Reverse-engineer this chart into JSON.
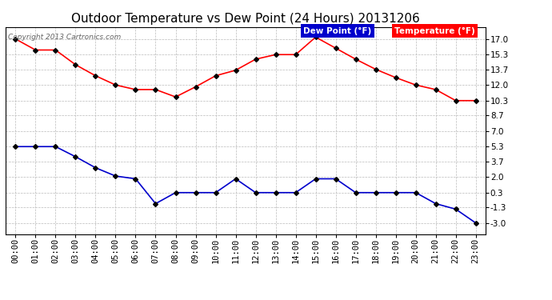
{
  "title": "Outdoor Temperature vs Dew Point (24 Hours) 20131206",
  "copyright": "Copyright 2013 Cartronics.com",
  "hours": [
    "00:00",
    "01:00",
    "02:00",
    "03:00",
    "04:00",
    "05:00",
    "06:00",
    "07:00",
    "08:00",
    "09:00",
    "10:00",
    "11:00",
    "12:00",
    "13:00",
    "14:00",
    "15:00",
    "16:00",
    "17:00",
    "18:00",
    "19:00",
    "20:00",
    "21:00",
    "22:00",
    "23:00"
  ],
  "temperature": [
    17.0,
    15.8,
    15.8,
    14.2,
    13.0,
    12.0,
    11.5,
    11.5,
    10.7,
    11.8,
    13.0,
    13.6,
    14.8,
    15.3,
    15.3,
    17.2,
    16.0,
    14.8,
    13.7,
    12.8,
    12.0,
    11.5,
    10.3,
    10.3
  ],
  "dew_point": [
    5.3,
    5.3,
    5.3,
    4.2,
    3.0,
    2.1,
    1.8,
    -0.9,
    0.3,
    0.3,
    0.3,
    1.8,
    0.3,
    0.3,
    0.3,
    1.8,
    1.8,
    0.3,
    0.3,
    0.3,
    0.3,
    -0.9,
    -1.5,
    -3.0
  ],
  "temp_color": "#ff0000",
  "dew_color": "#0000cc",
  "marker": "D",
  "marker_color": "#000000",
  "marker_size": 3,
  "line_width": 1.2,
  "yticks": [
    17.0,
    15.3,
    13.7,
    12.0,
    10.3,
    8.7,
    7.0,
    5.3,
    3.7,
    2.0,
    0.3,
    -1.3,
    -3.0
  ],
  "ylim": [
    -4.2,
    18.3
  ],
  "background_color": "#ffffff",
  "grid_color": "#bbbbbb",
  "legend_dew_label": "Dew Point (°F)",
  "legend_temp_label": "Temperature (°F)",
  "legend_dew_bg": "#0000cc",
  "legend_temp_bg": "#ff0000",
  "title_fontsize": 11,
  "tick_fontsize": 7.5
}
